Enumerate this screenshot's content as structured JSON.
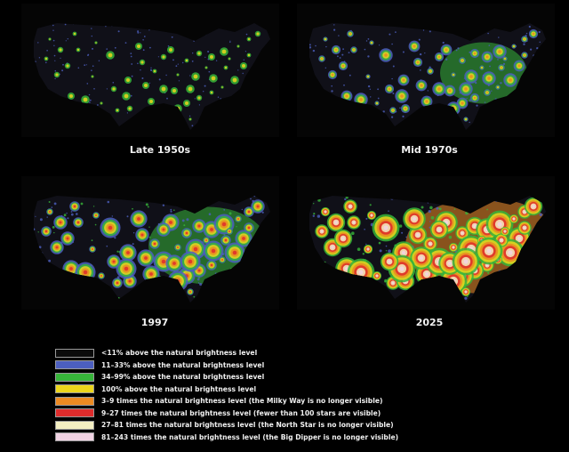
{
  "panels": [
    {
      "caption": "Late 1950s",
      "level": 1
    },
    {
      "caption": "Mid 1970s",
      "level": 2
    },
    {
      "caption": "1997",
      "level": 3
    },
    {
      "caption": "2025",
      "level": 4
    }
  ],
  "legend": [
    {
      "color": "#0b0b0b",
      "label": "<11% above the natural brightness level"
    },
    {
      "color": "#4c5fbf",
      "label": "11–33% above the natural brightness level"
    },
    {
      "color": "#37b53a",
      "label": "34–99% above the natural brightness level"
    },
    {
      "color": "#ecd61c",
      "label": "100% above the natural brightness level"
    },
    {
      "color": "#ec8a22",
      "label": "3–9 times the natural brightness level (the Milky Way is no longer visible)"
    },
    {
      "color": "#de2c2c",
      "label": "9–27 times the natural brightness level (fewer than 100 stars are visible)"
    },
    {
      "color": "#f4efc2",
      "label": "27–81 times the natural brightness level (the North Star is no longer visible)"
    },
    {
      "color": "#f1d3e3",
      "label": "81–243 times the natural brightness level (the Big Dipper is no longer visible)"
    }
  ]
}
